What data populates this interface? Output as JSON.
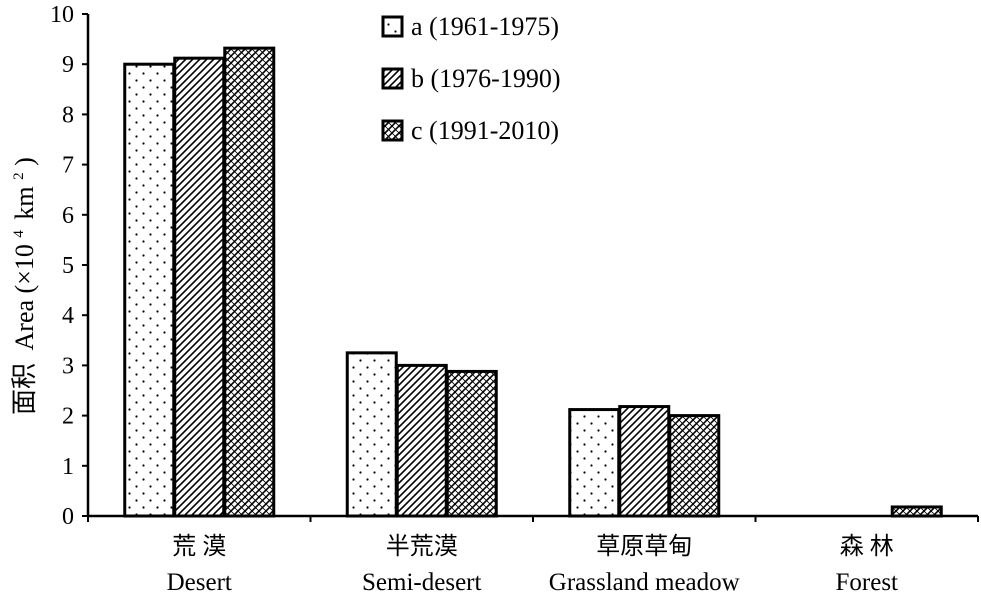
{
  "chart_data": {
    "type": "bar",
    "title": "",
    "xlabel": "",
    "ylabel": "面积 Area (×10⁴ km²)",
    "ylabel_parts": {
      "cn": "面积",
      "en": "Area (×10",
      "exp1": "4",
      "unit": "km",
      "exp2": "2",
      "close": ")"
    },
    "ylim": [
      0,
      10
    ],
    "yticks": [
      0,
      1,
      2,
      3,
      4,
      5,
      6,
      7,
      8,
      9,
      10
    ],
    "categories": [
      {
        "cn": "荒 漠",
        "en": "Desert"
      },
      {
        "cn": "半荒漠",
        "en": "Semi-desert"
      },
      {
        "cn": "草原草甸",
        "en": "Grassland meadow"
      },
      {
        "cn": "森 林",
        "en": "Forest"
      }
    ],
    "series": [
      {
        "name": "a (1961-1975)",
        "pattern": "dots",
        "values": [
          9.0,
          3.25,
          2.12,
          0
        ]
      },
      {
        "name": "b (1976-1990)",
        "pattern": "diagonal",
        "values": [
          9.12,
          3.0,
          2.18,
          0
        ]
      },
      {
        "name": "c (1991-2010)",
        "pattern": "crosshatch",
        "values": [
          9.32,
          2.88,
          2.0,
          0.18
        ]
      }
    ],
    "legend_position": "top-center",
    "grid": false
  }
}
